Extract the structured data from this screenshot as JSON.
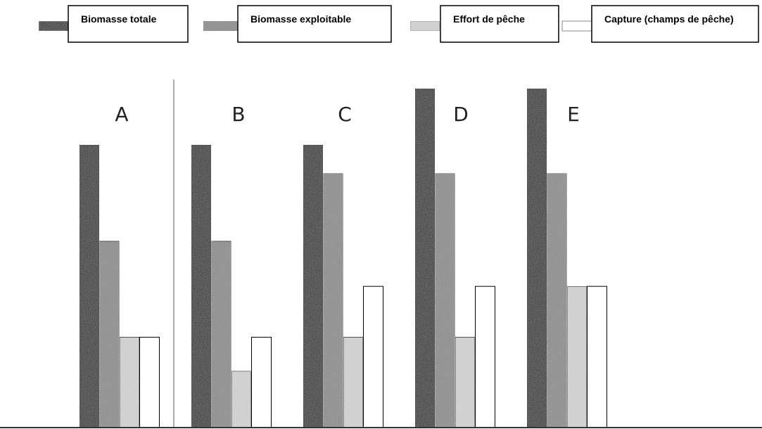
{
  "chart_data": {
    "type": "bar",
    "title": "",
    "xlabel": "",
    "ylabel": "",
    "ylim": [
      0,
      6
    ],
    "grid": false,
    "legend_position": "top",
    "categories": [
      "A",
      "B",
      "C",
      "D",
      "E"
    ],
    "series": [
      {
        "name": "Biomasse totale",
        "pattern": "dark-grain",
        "values": [
          5,
          5,
          5,
          6,
          6
        ]
      },
      {
        "name": "Biomasse exploitable",
        "pattern": "mid-grain",
        "values": [
          3.3,
          3.3,
          4.5,
          4.5,
          4.5
        ]
      },
      {
        "name": "Effort de pêche",
        "pattern": "light-grain",
        "values": [
          1.6,
          1.0,
          1.6,
          1.6,
          2.5
        ]
      },
      {
        "name": "Capture (champs de pêche)",
        "pattern": "white",
        "values": [
          1.6,
          1.6,
          2.5,
          2.5,
          2.5
        ]
      }
    ],
    "colors": {
      "dark": "#2f2f2f",
      "mid": "#8c8c8c",
      "light": "#d6d6d6",
      "white": "#ffffff",
      "outline": "#000000"
    }
  }
}
